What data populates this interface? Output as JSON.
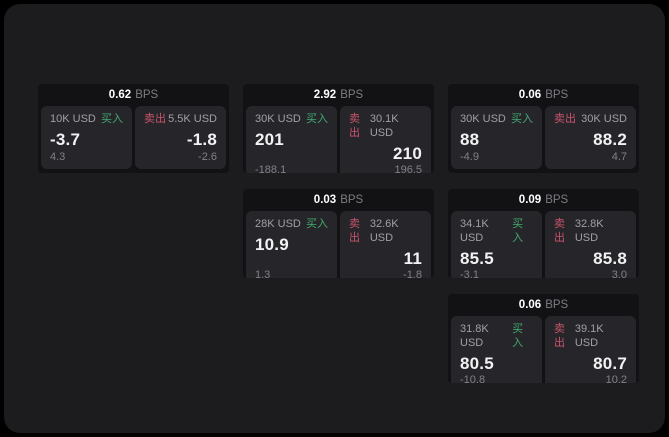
{
  "labels": {
    "bps_suffix": "BPS",
    "buy": "买入",
    "sell": "卖出"
  },
  "colors": {
    "buy": "#44a971",
    "sell": "#c9536b"
  },
  "cards": [
    {
      "bps": "0.62",
      "col": 1,
      "row": 1,
      "buy": {
        "amount": "10K USD",
        "price": "-3.7",
        "delta": "4.3"
      },
      "sell": {
        "amount": "5.5K USD",
        "price": "-1.8",
        "delta": "-2.6"
      }
    },
    {
      "bps": "2.92",
      "col": 2,
      "row": 1,
      "buy": {
        "amount": "30K USD",
        "price": "201",
        "delta": "-188.1"
      },
      "sell": {
        "amount": "30.1K USD",
        "price": "210",
        "delta": "196.5"
      }
    },
    {
      "bps": "0.06",
      "col": 3,
      "row": 1,
      "buy": {
        "amount": "30K USD",
        "price": "88",
        "delta": "-4.9"
      },
      "sell": {
        "amount": "30K USD",
        "price": "88.2",
        "delta": "4.7"
      }
    },
    {
      "bps": "0.03",
      "col": 2,
      "row": 2,
      "buy": {
        "amount": "28K USD",
        "price": "10.9",
        "delta": "1.3"
      },
      "sell": {
        "amount": "32.6K USD",
        "price": "11",
        "delta": "-1.8"
      }
    },
    {
      "bps": "0.09",
      "col": 3,
      "row": 2,
      "buy": {
        "amount": "34.1K USD",
        "price": "85.5",
        "delta": "-3.1"
      },
      "sell": {
        "amount": "32.8K USD",
        "price": "85.8",
        "delta": "3.0"
      }
    },
    {
      "bps": "0.06",
      "col": 3,
      "row": 3,
      "buy": {
        "amount": "31.8K USD",
        "price": "80.5",
        "delta": "-10.8"
      },
      "sell": {
        "amount": "39.1K USD",
        "price": "80.7",
        "delta": "10.2"
      }
    }
  ]
}
